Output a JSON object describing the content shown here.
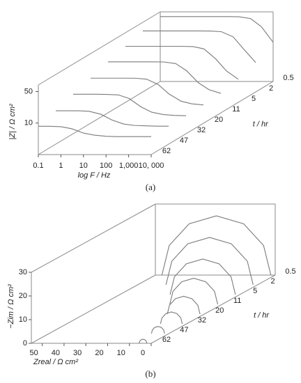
{
  "chart_data": [
    {
      "type": "waterfall",
      "caption": "(a)",
      "xlabel": "log F / Hz",
      "ylabel": "|Z| / Ω cm²",
      "zlabel": "t / hr",
      "xlog": true,
      "ylog": true,
      "xlim": [
        0.1,
        10000
      ],
      "ylim": [
        2,
        70
      ],
      "xticks": [
        0.1,
        1,
        10,
        100,
        {
          "value": 1000,
          "label": "1,000"
        },
        {
          "value": 10000,
          "label": "10, 000"
        }
      ],
      "yticks": [
        10,
        50
      ],
      "color": "#7a7a7a",
      "x": [
        0.1,
        0.3,
        1,
        3,
        10,
        30,
        100,
        300,
        1000,
        3000,
        10000
      ],
      "series": [
        {
          "name": "0.5",
          "values": [
            55,
            55,
            55,
            55,
            55,
            55,
            54.9,
            54.4,
            49.7,
            32.8,
            14.8
          ]
        },
        {
          "name": "2",
          "values": [
            45,
            45,
            45,
            45,
            45,
            45,
            44.8,
            43.3,
            33.3,
            17.6,
            9.0
          ]
        },
        {
          "name": "5",
          "values": [
            35,
            35,
            35,
            35,
            35,
            35,
            34.4,
            30.7,
            18.4,
            9.9,
            6.5
          ]
        },
        {
          "name": "11",
          "values": [
            27,
            27,
            27,
            27,
            27,
            26.8,
            24.7,
            17.2,
            9.3,
            6.5,
            5.4
          ]
        },
        {
          "name": "20",
          "values": [
            20,
            20,
            20,
            20,
            19.9,
            19.0,
            14.4,
            8.9,
            6.2,
            5.4,
            5.1
          ]
        },
        {
          "name": "32",
          "values": [
            15,
            15,
            15,
            14.9,
            14.5,
            12.1,
            7.9,
            6.0,
            5.3,
            5.1,
            5.0
          ]
        },
        {
          "name": "47",
          "values": [
            11,
            11,
            11.0,
            10.7,
            9.2,
            6.9,
            5.6,
            5.2,
            5.1,
            5.0,
            5.0
          ]
        },
        {
          "name": "62",
          "values": [
            8.5,
            8.5,
            8.3,
            7.5,
            6.0,
            5.4,
            5.1,
            5.0,
            5.0,
            5.0,
            5.0
          ]
        }
      ]
    },
    {
      "type": "waterfall",
      "caption": "(b)",
      "xlabel": "Zreal / Ω cm²",
      "ylabel": "−Zim / Ω cm²",
      "zlabel": "t / hr",
      "xlim": [
        55,
        0
      ],
      "ylim": [
        0,
        30
      ],
      "xticks": [
        50,
        40,
        30,
        20,
        10,
        0
      ],
      "yticks": [
        0,
        10,
        20,
        30
      ],
      "color": "#7a7a7a",
      "series": [
        {
          "name": "0.5",
          "x": [
            52,
            48.65,
            39.5,
            27,
            14.5,
            5.35,
            2
          ],
          "values": [
            0,
            12.5,
            21.65,
            25,
            21.65,
            12.5,
            0
          ]
        },
        {
          "name": "2",
          "x": [
            42,
            39.32,
            32,
            22,
            12,
            4.68,
            2
          ],
          "values": [
            0,
            10,
            17.32,
            20,
            17.32,
            10,
            0
          ]
        },
        {
          "name": "5",
          "x": [
            32,
            29.99,
            24.5,
            17,
            9.5,
            4.01,
            2
          ],
          "values": [
            0,
            7.5,
            12.99,
            15,
            12.99,
            7.5,
            0
          ]
        },
        {
          "name": "11",
          "x": [
            24,
            22.53,
            18.5,
            13,
            7.5,
            3.47,
            2
          ],
          "values": [
            0,
            5.5,
            9.53,
            11,
            9.53,
            5.5,
            0
          ]
        },
        {
          "name": "20",
          "x": [
            17,
            16.0,
            13.25,
            9.5,
            5.75,
            3.0,
            2
          ],
          "values": [
            0,
            3.75,
            6.5,
            7.5,
            6.5,
            3.75,
            0
          ]
        },
        {
          "name": "32",
          "x": [
            12,
            11.33,
            9.5,
            7,
            4.5,
            2.67,
            2
          ],
          "values": [
            0,
            2.5,
            4.33,
            5,
            4.33,
            2.5,
            0
          ]
        },
        {
          "name": "47",
          "x": [
            8,
            7.6,
            6.5,
            5,
            3.5,
            2.4,
            2
          ],
          "values": [
            0,
            1.5,
            2.6,
            3,
            2.6,
            1.5,
            0
          ]
        },
        {
          "name": "62",
          "x": [
            5.5,
            5.27,
            4.63,
            3.75,
            2.88,
            2.23,
            2
          ],
          "values": [
            0,
            0.88,
            1.52,
            1.75,
            1.52,
            0.88,
            0
          ]
        }
      ]
    }
  ]
}
